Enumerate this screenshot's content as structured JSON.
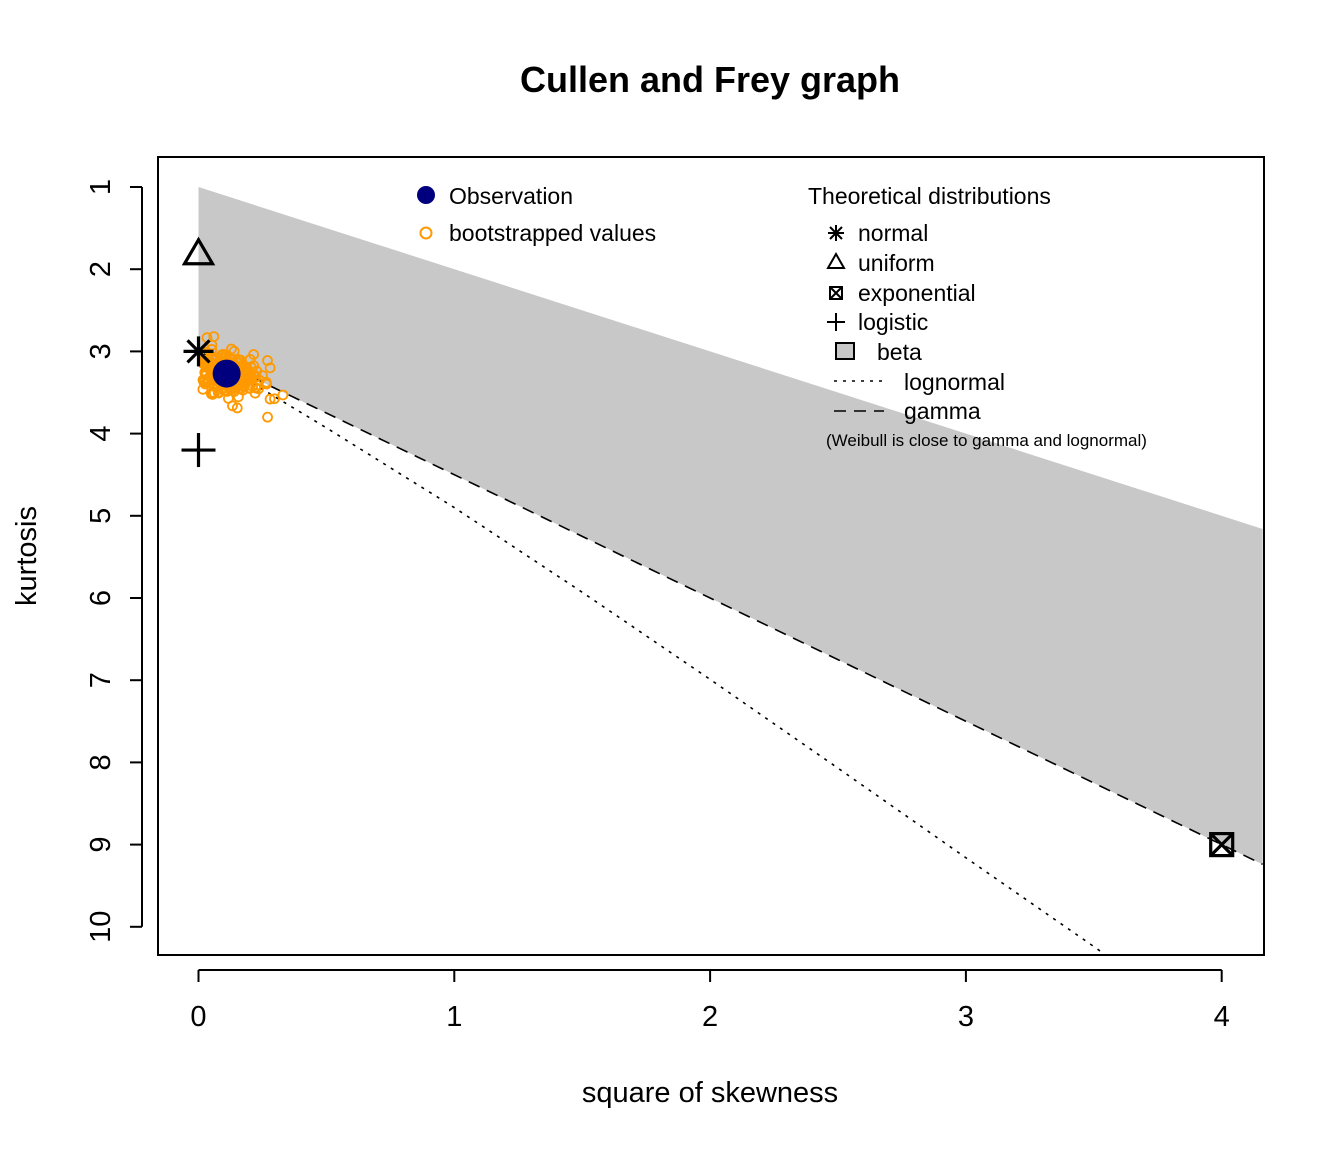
{
  "chart_data": {
    "type": "scatter",
    "title": "Cullen and Frey graph",
    "xlabel": "square of skewness",
    "ylabel": "kurtosis",
    "xlim": [
      -0.16,
      4.16
    ],
    "ylim": [
      10.35,
      0.65
    ],
    "y_axis_inverted": true,
    "x_ticks": [
      0,
      1,
      2,
      3,
      4
    ],
    "y_ticks": [
      1,
      2,
      3,
      4,
      5,
      6,
      7,
      8,
      9,
      10
    ],
    "observation": {
      "x": 0.11,
      "y": 3.27
    },
    "bootstrap_center": {
      "x": 0.12,
      "y": 3.28
    },
    "bootstrap_outliers": [
      {
        "x": 0.27,
        "y": 3.8
      },
      {
        "x": 0.33,
        "y": 3.53
      },
      {
        "x": 0.28,
        "y": 3.58
      },
      {
        "x": 0.06,
        "y": 2.82
      },
      {
        "x": 0.28,
        "y": 3.2
      }
    ],
    "theoretical_points": [
      {
        "name": "normal",
        "x": 0,
        "y": 3
      },
      {
        "name": "uniform",
        "x": 0,
        "y": 1.8
      },
      {
        "name": "exponential",
        "x": 4,
        "y": 9
      },
      {
        "name": "logistic",
        "x": 0,
        "y": 4.2
      }
    ],
    "beta_region": {
      "upper": "y = x + 1",
      "lower": "y = 1.5x + 3",
      "x_from": 0
    },
    "lognormal_curve": [
      {
        "x": 0,
        "y": 3
      },
      {
        "x": 0.25,
        "y": 3.46
      },
      {
        "x": 0.5,
        "y": 3.93
      },
      {
        "x": 1,
        "y": 4.9
      },
      {
        "x": 1.5,
        "y": 5.93
      },
      {
        "x": 2,
        "y": 6.99
      },
      {
        "x": 2.5,
        "y": 8.07
      },
      {
        "x": 3,
        "y": 9.16
      },
      {
        "x": 3.5,
        "y": 10.24
      },
      {
        "x": 3.76,
        "y": 10.82
      }
    ],
    "gamma_line": {
      "slope": 1.5,
      "intercept": 3
    },
    "colors": {
      "observation": "#00007f",
      "bootstrap": "#ff9900",
      "beta_fill": "#c8c8c8",
      "lines": "#000000"
    },
    "legend_observed": {
      "observation": "Observation",
      "bootstrap": "bootstrapped values"
    },
    "legend_theoretical": {
      "heading": "Theoretical distributions",
      "normal": "normal",
      "uniform": "uniform",
      "exponential": "exponential",
      "logistic": "logistic",
      "beta": "beta",
      "lognormal": "lognormal",
      "gamma": "gamma",
      "note": "(Weibull is close to gamma and lognormal)"
    }
  }
}
